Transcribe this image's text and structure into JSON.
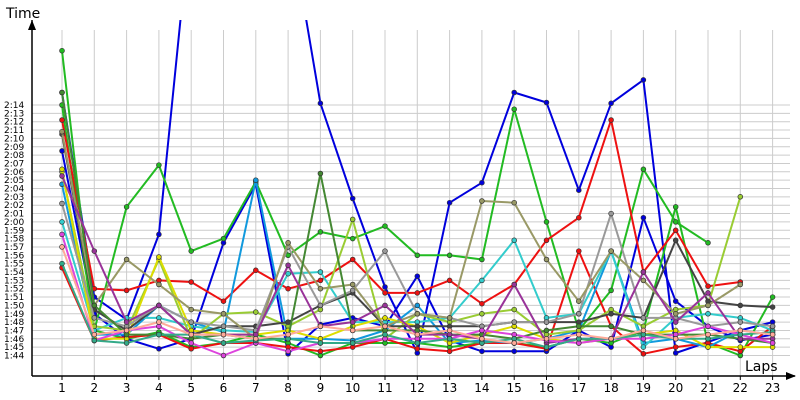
{
  "chart_data": {
    "type": "line",
    "title": "",
    "xlabel": "Laps",
    "ylabel": "Time",
    "grid": true,
    "legend": "none",
    "xlim": [
      1,
      23
    ],
    "ylim": [
      "1:44",
      "2:15"
    ],
    "x": [
      1,
      2,
      3,
      4,
      5,
      6,
      7,
      8,
      9,
      10,
      11,
      12,
      13,
      14,
      15,
      16,
      17,
      18,
      19,
      20,
      21,
      22,
      23
    ],
    "yticks": [
      "1:44",
      "1:45",
      "1:46",
      "1:47",
      "1:48",
      "1:49",
      "1:50",
      "1:51",
      "1:52",
      "1:53",
      "1:54",
      "1:55",
      "1:56",
      "1:57",
      "1:58",
      "1:59",
      "2:00",
      "2:01",
      "2:02",
      "2:03",
      "2:04",
      "2:05",
      "2:06",
      "2:07",
      "2:08",
      "2:09",
      "2:10",
      "2:11",
      "2:12",
      "2:13",
      "2:14"
    ],
    "series": [
      {
        "color": "#0000dd",
        "values": [
          135.5,
          111.0,
          108.3,
          118.5,
          157,
          157,
          178.0,
          157,
          134.2,
          122.8,
          112.2,
          104.3,
          122.3,
          124.7,
          135.5,
          134.3,
          123.8,
          134.2,
          137,
          104.3,
          105.6,
          107.0,
          108.0
        ]
      },
      {
        "color": "#0000dd",
        "values": [
          128.5,
          109.0,
          106.0,
          104.8,
          106.0,
          117.5,
          124.5,
          104.2,
          107.7,
          108.5,
          107.5,
          113.5,
          105.8,
          104.5,
          104.5,
          104.5,
          107.0,
          105.0,
          120.5,
          110.5,
          107.5,
          105.8,
          106.5
        ]
      },
      {
        "color": "#22bb22",
        "values": [
          140.5,
          107.0,
          121.8,
          126.8,
          116.5,
          118.0,
          124.8,
          116.0,
          118.8,
          118.0,
          119.5,
          116.0,
          116.0,
          115.5,
          133.5,
          120.0,
          107.0,
          111.8,
          126.3,
          120.0,
          117.5,
          null,
          null
        ]
      },
      {
        "color": "#22bb22",
        "values": [
          134.0,
          107.0,
          106.0,
          106.8,
          105.0,
          105.5,
          106.5,
          105.5,
          104.0,
          105.5,
          105.5,
          105.5,
          105.0,
          105.5,
          105.5,
          105.0,
          106.0,
          105.5,
          107.0,
          121.8,
          105.5,
          104.0,
          111.0
        ]
      },
      {
        "color": "#ee1111",
        "values": [
          132.2,
          112.0,
          111.8,
          113.0,
          112.8,
          110.5,
          114.2,
          112.0,
          113.0,
          115.5,
          111.5,
          111.5,
          113.0,
          110.2,
          112.5,
          117.8,
          120.5,
          132.2,
          114.0,
          119.0,
          112.3,
          112.8,
          null
        ]
      },
      {
        "color": "#ee1111",
        "values": [
          114.5,
          105.8,
          106.2,
          106.5,
          104.8,
          105.5,
          105.5,
          105.0,
          104.5,
          105.0,
          106.0,
          104.8,
          104.5,
          105.5,
          105.5,
          104.8,
          116.5,
          107.5,
          104.2,
          105.0,
          105.5,
          104.5,
          107.5
        ]
      },
      {
        "color": "#1199dd",
        "values": [
          124.5,
          106.5,
          106.5,
          110.0,
          108.0,
          106.8,
          125.0,
          106.0,
          106.0,
          105.8,
          107.0,
          110.0,
          105.5,
          105.8,
          105.5,
          106.0,
          107.0,
          116.5,
          105.5,
          106.0,
          105.0,
          107.0,
          106.5
        ]
      },
      {
        "color": "#33cccc",
        "values": [
          120.0,
          107.0,
          108.5,
          108.5,
          107.5,
          107.0,
          106.8,
          113.8,
          114.0,
          108.0,
          108.0,
          108.0,
          108.5,
          113.0,
          117.8,
          108.5,
          109.0,
          116.5,
          105.0,
          108.5,
          109.0,
          108.5,
          107.0
        ]
      },
      {
        "color": "#99cc33",
        "values": [
          126.0,
          107.5,
          107.0,
          115.5,
          106.0,
          109.0,
          109.2,
          107.5,
          109.5,
          120.3,
          106.0,
          109.0,
          108.0,
          109.0,
          109.5,
          106.5,
          107.0,
          109.5,
          107.5,
          109.5,
          110.0,
          123.0,
          null
        ]
      },
      {
        "color": "#dddd00",
        "values": [
          126.3,
          106.0,
          106.0,
          115.8,
          107.0,
          106.5,
          106.5,
          107.0,
          106.0,
          107.5,
          108.5,
          107.5,
          105.5,
          106.5,
          107.5,
          106.0,
          105.5,
          106.0,
          106.5,
          107.0,
          105.0,
          105.0,
          105.0
        ]
      },
      {
        "color": "#444444",
        "values": [
          130.5,
          109.5,
          107.0,
          110.0,
          106.5,
          107.5,
          107.5,
          108.0,
          110.0,
          111.5,
          107.5,
          107.5,
          107.5,
          107.5,
          108.0,
          108.0,
          108.0,
          109.0,
          108.5,
          117.8,
          110.5,
          110.0,
          109.8
        ]
      },
      {
        "color": "#999999",
        "values": [
          122.2,
          108.5,
          107.5,
          110.0,
          108.0,
          107.5,
          107.0,
          117.0,
          110.0,
          111.8,
          116.5,
          109.0,
          108.5,
          107.5,
          108.0,
          108.0,
          109.0,
          121.0,
          108.5,
          108.5,
          107.5,
          108.0,
          107.5
        ]
      },
      {
        "color": "#999966",
        "values": [
          130.8,
          110.0,
          115.5,
          112.5,
          109.5,
          109.0,
          106.0,
          117.5,
          112.0,
          112.5,
          107.5,
          109.0,
          108.5,
          122.5,
          122.3,
          115.5,
          110.5,
          116.5,
          113.0,
          109.0,
          110.0,
          112.5,
          null
        ]
      },
      {
        "color": "#448833",
        "values": [
          135.5,
          110.0,
          106.5,
          106.5,
          106.0,
          106.5,
          106.0,
          106.0,
          125.8,
          107.0,
          107.0,
          107.0,
          106.5,
          106.5,
          106.0,
          107.0,
          107.5,
          107.5,
          106.5,
          106.5,
          106.5,
          106.0,
          105.5
        ]
      },
      {
        "color": "#993399",
        "values": [
          125.5,
          116.5,
          108.0,
          110.0,
          106.5,
          106.5,
          106.5,
          114.8,
          107.5,
          108.0,
          110.0,
          106.5,
          106.5,
          106.0,
          112.5,
          105.5,
          106.0,
          106.0,
          114.0,
          108.0,
          111.5,
          106.0,
          106.0
        ]
      },
      {
        "color": "#dd44dd",
        "values": [
          118.5,
          105.8,
          107.0,
          107.5,
          105.5,
          104.0,
          105.5,
          104.5,
          105.5,
          105.5,
          106.0,
          106.0,
          106.0,
          107.0,
          106.5,
          105.8,
          105.5,
          106.0,
          106.0,
          106.5,
          107.5,
          106.5,
          105.5
        ]
      },
      {
        "color": "#33aa88",
        "values": [
          115.0,
          105.8,
          105.5,
          106.5,
          106.5,
          105.5,
          105.8,
          106.0,
          105.5,
          105.5,
          106.5,
          105.5,
          106.0,
          105.5,
          106.0,
          105.0,
          106.0,
          106.0,
          106.5,
          106.0,
          106.0,
          106.5,
          106.8
        ]
      },
      {
        "color": "#ffaa99",
        "values": [
          117.0,
          106.5,
          107.0,
          108.0,
          106.5,
          106.5,
          106.0,
          106.5,
          107.5,
          107.0,
          107.5,
          106.5,
          107.0,
          106.0,
          105.5,
          106.0,
          106.5,
          106.0,
          107.0,
          106.0,
          106.5,
          107.0,
          106.5
        ]
      }
    ]
  }
}
